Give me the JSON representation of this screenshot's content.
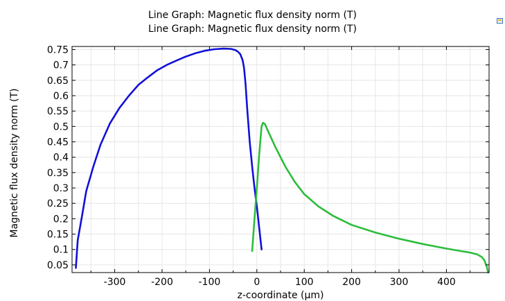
{
  "chart_data": {
    "type": "line",
    "title": "Line Graph: Magnetic flux density norm (T)",
    "subtitle": "Line Graph: Magnetic flux density norm (T)",
    "xlabel": "z-coordinate (µm)",
    "ylabel": "Magnetic flux density norm (T)",
    "xlim": [
      -390,
      490
    ],
    "ylim": [
      0.025,
      0.76
    ],
    "xticks": [
      -300,
      -200,
      -100,
      0,
      100,
      200,
      300,
      400
    ],
    "yticks": [
      0.05,
      0.1,
      0.15,
      0.2,
      0.25,
      0.3,
      0.35,
      0.4,
      0.45,
      0.5,
      0.55,
      0.6,
      0.65,
      0.7,
      0.75
    ],
    "grid": true,
    "series": [
      {
        "color": "#1010d8",
        "x": [
          -382,
          -378,
          -370,
          -360,
          -345,
          -330,
          -310,
          -290,
          -270,
          -250,
          -230,
          -210,
          -190,
          -170,
          -150,
          -130,
          -110,
          -90,
          -70,
          -55,
          -45,
          -40,
          -35,
          -30,
          -27,
          -24,
          -20,
          -15,
          -10,
          -5,
          0,
          5,
          10
        ],
        "y": [
          0.04,
          0.13,
          0.2,
          0.29,
          0.37,
          0.44,
          0.51,
          0.56,
          0.6,
          0.635,
          0.66,
          0.683,
          0.7,
          0.714,
          0.727,
          0.738,
          0.746,
          0.751,
          0.753,
          0.752,
          0.748,
          0.743,
          0.735,
          0.715,
          0.69,
          0.64,
          0.55,
          0.45,
          0.37,
          0.3,
          0.24,
          0.17,
          0.1
        ]
      },
      {
        "color": "#2cbd3c",
        "x": [
          -10,
          -5,
          0,
          5,
          10,
          13,
          17,
          25,
          40,
          60,
          80,
          100,
          130,
          160,
          200,
          250,
          300,
          350,
          400,
          430,
          450,
          465,
          475,
          480,
          485,
          488
        ],
        "y": [
          0.095,
          0.2,
          0.3,
          0.41,
          0.5,
          0.512,
          0.508,
          0.48,
          0.43,
          0.37,
          0.32,
          0.28,
          0.24,
          0.21,
          0.18,
          0.155,
          0.135,
          0.118,
          0.103,
          0.095,
          0.09,
          0.084,
          0.075,
          0.065,
          0.045,
          0.025
        ]
      }
    ]
  }
}
